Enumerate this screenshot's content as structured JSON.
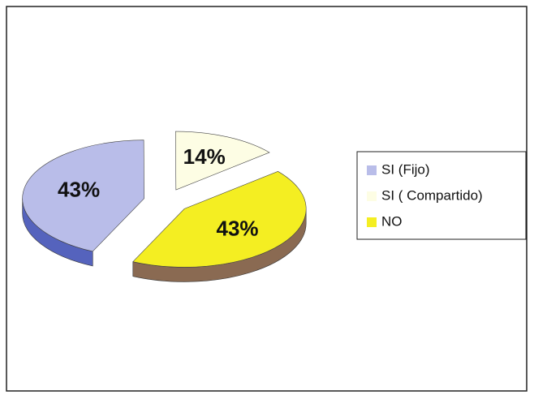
{
  "chart_data": {
    "type": "pie",
    "categories": [
      "SI (Fijo)",
      "SI ( Compartido)",
      "NO"
    ],
    "values": [
      43,
      14,
      43
    ],
    "value_labels": [
      "43%",
      "14%",
      "43%"
    ],
    "colors": [
      "#b9bde9",
      "#fdfde4",
      "#f4ee22"
    ],
    "legend": "right"
  }
}
